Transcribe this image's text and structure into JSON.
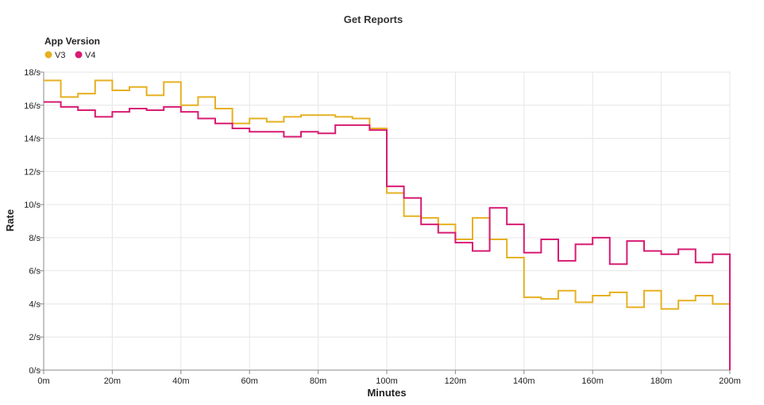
{
  "chart_data": {
    "type": "line",
    "interpolation": "step",
    "title": "Get Reports",
    "xlabel": "Minutes",
    "ylabel": "Rate",
    "xlim": [
      0,
      200
    ],
    "ylim": [
      0,
      18
    ],
    "x_ticks": [
      0,
      20,
      40,
      60,
      80,
      100,
      120,
      140,
      160,
      180,
      200
    ],
    "x_tick_labels": [
      "0m",
      "20m",
      "40m",
      "60m",
      "80m",
      "100m",
      "120m",
      "140m",
      "160m",
      "180m",
      "200m"
    ],
    "y_ticks": [
      0,
      2,
      4,
      6,
      8,
      10,
      12,
      14,
      16,
      18
    ],
    "y_tick_labels": [
      "0/s",
      "2/s",
      "4/s",
      "6/s",
      "8/s",
      "10/s",
      "12/s",
      "14/s",
      "16/s",
      "18/s"
    ],
    "grid": true,
    "legend": {
      "title": "App Version",
      "placement": "top-left"
    },
    "x": [
      0,
      5,
      10,
      15,
      20,
      25,
      30,
      35,
      40,
      45,
      50,
      55,
      60,
      65,
      70,
      75,
      80,
      85,
      90,
      95,
      100,
      105,
      110,
      115,
      120,
      125,
      130,
      135,
      140,
      145,
      150,
      155,
      160,
      165,
      170,
      175,
      180,
      185,
      190,
      195,
      200
    ],
    "series": [
      {
        "name": "V3",
        "color": "#e6b022",
        "values": [
          17.5,
          16.5,
          16.7,
          17.5,
          16.9,
          17.1,
          16.6,
          17.4,
          16.0,
          16.5,
          15.8,
          14.9,
          15.2,
          15.0,
          15.3,
          15.4,
          15.4,
          15.3,
          15.2,
          14.6,
          10.7,
          9.3,
          9.2,
          8.8,
          7.9,
          9.2,
          7.9,
          6.8,
          4.4,
          4.3,
          4.8,
          4.1,
          4.5,
          4.7,
          3.8,
          4.8,
          3.7,
          4.2,
          4.5,
          4.0,
          0
        ]
      },
      {
        "name": "V4",
        "color": "#d81b72",
        "values": [
          16.2,
          15.9,
          15.7,
          15.3,
          15.6,
          15.8,
          15.7,
          15.9,
          15.6,
          15.2,
          14.9,
          14.6,
          14.4,
          14.4,
          14.1,
          14.4,
          14.3,
          14.8,
          14.8,
          14.5,
          11.1,
          10.4,
          8.8,
          8.3,
          7.7,
          7.2,
          9.8,
          8.8,
          7.1,
          7.9,
          6.6,
          7.6,
          8.0,
          6.4,
          7.8,
          7.2,
          7.0,
          7.3,
          6.5,
          7.0,
          0
        ]
      }
    ]
  }
}
